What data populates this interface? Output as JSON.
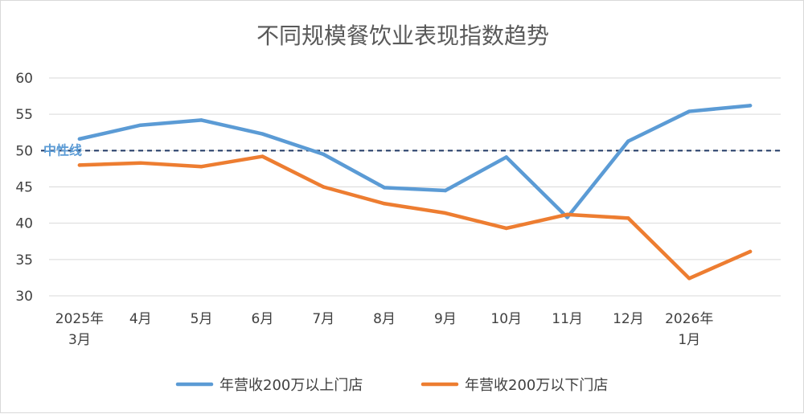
{
  "chart_data": {
    "type": "line",
    "title": "不同规模餐饮业表现指数趋势",
    "categories": [
      [
        "2025年",
        "3月"
      ],
      [
        "4月"
      ],
      [
        "5月"
      ],
      [
        "6月"
      ],
      [
        "7月"
      ],
      [
        "8月"
      ],
      [
        "9月"
      ],
      [
        "10月"
      ],
      [
        "11月"
      ],
      [
        "12月"
      ],
      [
        "2026年",
        "1月"
      ],
      []
    ],
    "yticks": [
      "30",
      "35",
      "40",
      "45",
      "50",
      "55",
      "60"
    ],
    "ylim": [
      30,
      60
    ],
    "grid": true,
    "legend_position": "bottom",
    "series": [
      {
        "name": "年营收200万以上门店",
        "color": "#5b9bd5",
        "values": [
          51.6,
          53.5,
          54.2,
          52.3,
          49.5,
          44.9,
          44.5,
          49.1,
          40.8,
          51.3,
          55.4,
          56.2
        ]
      },
      {
        "name": "年营收200万以下门店",
        "color": "#ed7d31",
        "values": [
          48.0,
          48.3,
          47.8,
          49.2,
          45.0,
          42.7,
          41.4,
          39.3,
          41.2,
          40.7,
          32.4,
          36.1
        ]
      }
    ],
    "reference_line": {
      "value": 50,
      "label": "中性线",
      "color": "#1f3864"
    }
  }
}
